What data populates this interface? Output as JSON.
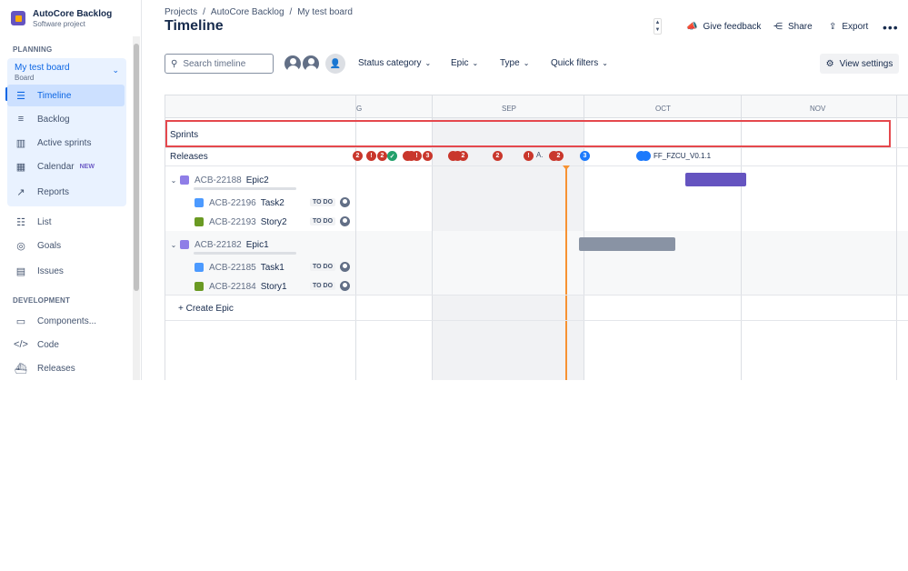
{
  "project": {
    "name": "AutoCore Backlog",
    "type": "Software project"
  },
  "sidebar": {
    "planning_label": "PLANNING",
    "board": {
      "name": "My test board",
      "sub": "Board"
    },
    "planning_items": [
      {
        "label": "Timeline",
        "icon": "timeline-icon"
      },
      {
        "label": "Backlog",
        "icon": "backlog-icon"
      },
      {
        "label": "Active sprints",
        "icon": "board-icon"
      },
      {
        "label": "Calendar",
        "icon": "calendar-icon",
        "badge": "NEW"
      },
      {
        "label": "Reports",
        "icon": "reports-icon"
      }
    ],
    "other_items": [
      {
        "label": "List",
        "icon": "list-icon"
      },
      {
        "label": "Goals",
        "icon": "goals-icon"
      },
      {
        "label": "Issues",
        "icon": "issues-icon"
      }
    ],
    "development_label": "DEVELOPMENT",
    "dev_items": [
      {
        "label": "Components...",
        "icon": "components-icon"
      },
      {
        "label": "Code",
        "icon": "code-icon"
      },
      {
        "label": "Releases",
        "icon": "releases-icon"
      }
    ]
  },
  "breadcrumbs": [
    "Projects",
    "AutoCore Backlog",
    "My test board"
  ],
  "page_title": "Timeline",
  "header_actions": {
    "feedback": "Give feedback",
    "share": "Share",
    "export": "Export"
  },
  "toolbar": {
    "search_placeholder": "Search timeline",
    "filters": [
      "Status category",
      "Epic",
      "Type",
      "Quick filters"
    ],
    "view_settings": "View settings"
  },
  "timeline": {
    "months": [
      "G",
      "SEP",
      "OCT",
      "NOV"
    ],
    "sprints_label": "Sprints",
    "releases_label": "Releases",
    "release_markers": [
      "2",
      "!",
      "2",
      "✓",
      "!",
      "!",
      "3",
      "2",
      "2",
      "!",
      "A.",
      "2",
      "3"
    ],
    "release_version": "FF_FZCU_V0.1.1",
    "epics": [
      {
        "key": "ACB-22188",
        "summary": "Epic2",
        "children": [
          {
            "key": "ACB-22196",
            "summary": "Task2",
            "type": "task",
            "status": "TO DO"
          },
          {
            "key": "ACB-22193",
            "summary": "Story2",
            "type": "story",
            "status": "TO DO"
          }
        ]
      },
      {
        "key": "ACB-22182",
        "summary": "Epic1",
        "children": [
          {
            "key": "ACB-22185",
            "summary": "Task1",
            "type": "task",
            "status": "TO DO"
          },
          {
            "key": "ACB-22184",
            "summary": "Story1",
            "type": "story",
            "status": "TO DO"
          }
        ]
      }
    ],
    "create_epic": "Create Epic"
  },
  "colors": {
    "epic2_bar": "#6554C0",
    "epic1_bar": "#8993A4",
    "today_line": "#F79232",
    "highlight_box": "#E5484D"
  }
}
